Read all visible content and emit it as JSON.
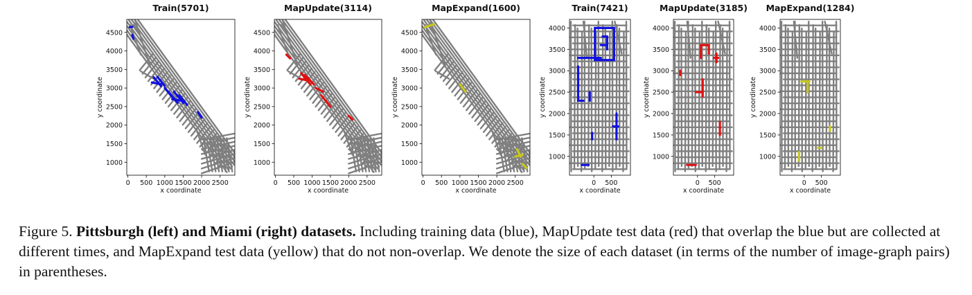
{
  "figure": {
    "caption": {
      "label": "Figure 5.",
      "bold": "Pittsburgh (left) and Miami (right) datasets.",
      "rest": "Including training data (blue), MapUpdate test data (red) that overlap the blue but are collected at different times, and MapExpand test data (yellow) that do not non-overlap. We denote the size of each dataset (in terms of the number of image-graph pairs) in parentheses."
    }
  },
  "colors": {
    "road": "#7f7f7f",
    "train": "#1010e0",
    "mapupdate": "#e01010",
    "mapexpand": "#c8c81e"
  },
  "chart_data": [
    {
      "type": "scatter",
      "city": "Pittsburgh",
      "title": "Train(5701)",
      "xlabel": "x coordinate",
      "ylabel": "y coordinate",
      "xlim": [
        -30,
        2900
      ],
      "ylim": [
        650,
        4850
      ],
      "xticks": [
        "0",
        "500",
        "1000",
        "1500",
        "2000",
        "2500"
      ],
      "yticks": [
        "1000",
        "1500",
        "2000",
        "2500",
        "3000",
        "3500",
        "4000",
        "4500"
      ],
      "highlight_color": "#1010e0",
      "highlights": [
        [
          [
            50,
            4640
          ],
          [
            120,
            4650
          ]
        ],
        [
          [
            120,
            4430
          ],
          [
            150,
            4330
          ]
        ],
        [
          [
            700,
            3290
          ],
          [
            900,
            3050
          ]
        ],
        [
          [
            800,
            3300
          ],
          [
            1000,
            3060
          ]
        ],
        [
          [
            650,
            3150
          ],
          [
            900,
            3100
          ]
        ],
        [
          [
            1000,
            3000
          ],
          [
            1250,
            2700
          ]
        ],
        [
          [
            1100,
            2900
          ],
          [
            1350,
            2600
          ]
        ],
        [
          [
            1250,
            2900
          ],
          [
            1500,
            2600
          ]
        ],
        [
          [
            1400,
            2800
          ],
          [
            1600,
            2550
          ]
        ],
        [
          [
            1200,
            2700
          ],
          [
            1500,
            2650
          ]
        ],
        [
          [
            1900,
            2350
          ],
          [
            2000,
            2200
          ]
        ]
      ]
    },
    {
      "type": "scatter",
      "city": "Pittsburgh",
      "title": "MapUpdate(3114)",
      "xlabel": "x coordinate",
      "ylabel": "y coordinate",
      "xlim": [
        -30,
        2900
      ],
      "ylim": [
        650,
        4850
      ],
      "xticks": [
        "0",
        "500",
        "1000",
        "1500",
        "2000",
        "2500"
      ],
      "yticks": [
        "1000",
        "1500",
        "2000",
        "2500",
        "3000",
        "3500",
        "4000",
        "4500"
      ],
      "highlight_color": "#e01010",
      "highlights": [
        [
          [
            300,
            3900
          ],
          [
            400,
            3800
          ]
        ],
        [
          [
            700,
            3400
          ],
          [
            950,
            3100
          ]
        ],
        [
          [
            800,
            3350
          ],
          [
            1050,
            3100
          ]
        ],
        [
          [
            650,
            3250
          ],
          [
            900,
            3200
          ]
        ],
        [
          [
            1100,
            3000
          ],
          [
            1300,
            2900
          ]
        ],
        [
          [
            1250,
            2800
          ],
          [
            1500,
            2500
          ]
        ],
        [
          [
            2000,
            2250
          ],
          [
            2100,
            2150
          ]
        ]
      ]
    },
    {
      "type": "scatter",
      "city": "Pittsburgh",
      "title": "MapExpand(1600)",
      "xlabel": "x coordinate",
      "ylabel": "y coordinate",
      "xlim": [
        -30,
        2900
      ],
      "ylim": [
        650,
        4850
      ],
      "xticks": [
        "0",
        "500",
        "1000",
        "1500",
        "2000",
        "2500"
      ],
      "yticks": [
        "1000",
        "1500",
        "2000",
        "2500",
        "3000",
        "3500",
        "4000",
        "4500"
      ],
      "highlight_color": "#c8c81e",
      "highlights": [
        [
          [
            50,
            4640
          ],
          [
            300,
            4720
          ]
        ],
        [
          [
            1000,
            3100
          ],
          [
            1150,
            2900
          ]
        ],
        [
          [
            2550,
            1350
          ],
          [
            2650,
            1150
          ]
        ],
        [
          [
            2500,
            1150
          ],
          [
            2700,
            1200
          ]
        ],
        [
          [
            2700,
            950
          ],
          [
            2800,
            850
          ]
        ]
      ]
    },
    {
      "type": "scatter",
      "city": "Miami",
      "title": "Train(7421)",
      "xlabel": "x coordinate",
      "ylabel": "y coordinate",
      "xlim": [
        -700,
        1050
      ],
      "ylim": [
        560,
        4200
      ],
      "xticks": [
        "0",
        "500"
      ],
      "yticks": [
        "1000",
        "1500",
        "2000",
        "2500",
        "3000",
        "3500",
        "4000"
      ],
      "highlight_color": "#1010e0",
      "highlights": [
        [
          [
            30,
            4000
          ],
          [
            580,
            4000
          ]
        ],
        [
          [
            30,
            4000
          ],
          [
            30,
            3250
          ]
        ],
        [
          [
            580,
            4000
          ],
          [
            580,
            3250
          ]
        ],
        [
          [
            30,
            3250
          ],
          [
            580,
            3250
          ]
        ],
        [
          [
            250,
            3800
          ],
          [
            380,
            3800
          ]
        ],
        [
          [
            380,
            3800
          ],
          [
            380,
            3500
          ]
        ],
        [
          [
            200,
            3600
          ],
          [
            380,
            3600
          ]
        ],
        [
          [
            -450,
            3300
          ],
          [
            200,
            3300
          ]
        ],
        [
          [
            -450,
            3100
          ],
          [
            -450,
            2300
          ]
        ],
        [
          [
            -450,
            2300
          ],
          [
            -300,
            2300
          ]
        ],
        [
          [
            -120,
            2500
          ],
          [
            -120,
            2300
          ]
        ],
        [
          [
            -50,
            1550
          ],
          [
            -50,
            1400
          ]
        ],
        [
          [
            650,
            2000
          ],
          [
            650,
            1400
          ]
        ],
        [
          [
            550,
            1700
          ],
          [
            700,
            1700
          ]
        ],
        [
          [
            -350,
            800
          ],
          [
            -150,
            800
          ]
        ]
      ]
    },
    {
      "type": "scatter",
      "city": "Miami",
      "title": "MapUpdate(3185)",
      "xlabel": "x coordinate",
      "ylabel": "y coordinate",
      "xlim": [
        -700,
        1050
      ],
      "ylim": [
        560,
        4200
      ],
      "xticks": [
        "0",
        "500"
      ],
      "yticks": [
        "1000",
        "1500",
        "2000",
        "2500",
        "3000",
        "3500",
        "4000"
      ],
      "highlight_color": "#e01010",
      "highlights": [
        [
          [
            100,
            3600
          ],
          [
            330,
            3600
          ]
        ],
        [
          [
            100,
            3600
          ],
          [
            100,
            3300
          ]
        ],
        [
          [
            330,
            3600
          ],
          [
            330,
            3400
          ]
        ],
        [
          [
            550,
            3400
          ],
          [
            550,
            3200
          ]
        ],
        [
          [
            480,
            3300
          ],
          [
            600,
            3300
          ]
        ],
        [
          [
            -500,
            3000
          ],
          [
            -500,
            2900
          ]
        ],
        [
          [
            -50,
            2500
          ],
          [
            150,
            2500
          ]
        ],
        [
          [
            150,
            2800
          ],
          [
            150,
            2400
          ]
        ],
        [
          [
            650,
            1800
          ],
          [
            650,
            1500
          ]
        ],
        [
          [
            -300,
            800
          ],
          [
            -50,
            800
          ]
        ]
      ]
    },
    {
      "type": "scatter",
      "city": "Miami",
      "title": "MapExpand(1284)",
      "xlabel": "x coordinate",
      "ylabel": "y coordinate",
      "xlim": [
        -700,
        1050
      ],
      "ylim": [
        560,
        4200
      ],
      "xticks": [
        "0",
        "500"
      ],
      "yticks": [
        "1000",
        "1500",
        "2000",
        "2500",
        "3000",
        "3500",
        "4000"
      ],
      "highlight_color": "#c8c81e",
      "highlights": [
        [
          [
            -80,
            2750
          ],
          [
            150,
            2750
          ]
        ],
        [
          [
            100,
            2750
          ],
          [
            100,
            2500
          ]
        ],
        [
          [
            -150,
            1100
          ],
          [
            -150,
            900
          ]
        ],
        [
          [
            400,
            1200
          ],
          [
            500,
            1200
          ]
        ],
        [
          [
            750,
            1700
          ],
          [
            750,
            1600
          ]
        ]
      ]
    }
  ]
}
